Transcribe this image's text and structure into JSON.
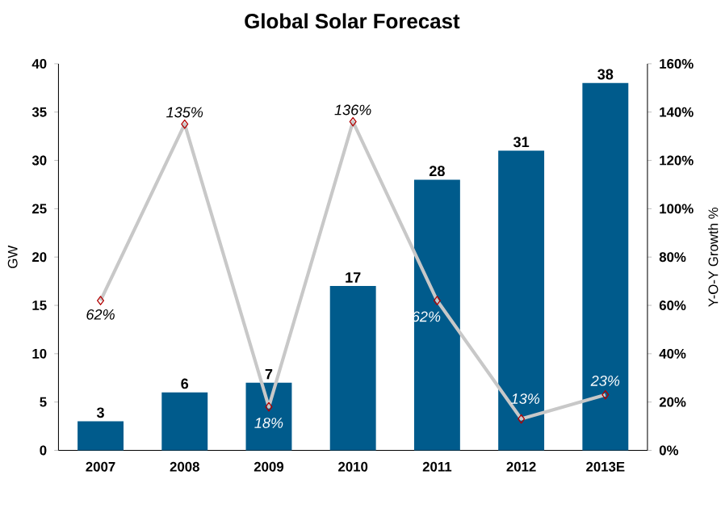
{
  "chart_data": {
    "type": "bar",
    "title": "Global Solar Forecast",
    "ylabel": "GW",
    "y2label": "Y-O-Y Growth %",
    "categories": [
      "2007",
      "2008",
      "2009",
      "2010",
      "2011",
      "2012",
      "2013E"
    ],
    "series": [
      {
        "color": "#005b8c",
        "values": [
          3,
          6,
          7,
          17,
          28,
          31,
          38
        ],
        "value_labels": [
          "3",
          "6",
          "7",
          "17",
          "28",
          "31",
          "38"
        ]
      },
      {
        "type": "line",
        "axis": "y2",
        "color": "#c8c8c8",
        "marker": "diamond",
        "values": [
          62,
          135,
          18,
          136,
          62,
          13,
          23
        ],
        "value_labels": [
          "62%",
          "135%",
          "18%",
          "136%",
          "62%",
          "13%",
          "23%"
        ]
      }
    ],
    "ylim": [
      0,
      40
    ],
    "yticks": [
      0,
      5,
      10,
      15,
      20,
      25,
      30,
      35,
      40
    ],
    "y2lim": [
      0,
      160
    ],
    "y2ticks": [
      {
        "value": 0,
        "label": "0%"
      },
      {
        "value": 20,
        "label": "20%"
      },
      {
        "value": 40,
        "label": "40%"
      },
      {
        "value": 60,
        "label": "60%"
      },
      {
        "value": 80,
        "label": "80%"
      },
      {
        "value": 100,
        "label": "100%"
      },
      {
        "value": 120,
        "label": "120%"
      },
      {
        "value": 140,
        "label": "140%"
      },
      {
        "value": 160,
        "label": "160%"
      }
    ],
    "grid": false
  }
}
